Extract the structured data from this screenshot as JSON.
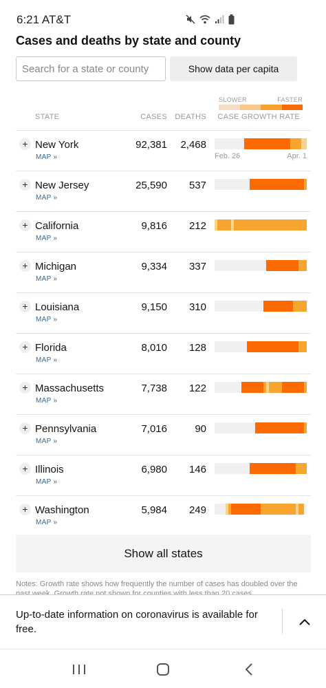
{
  "status_bar": {
    "time": "6:21",
    "carrier": "AT&T",
    "icons": [
      "mute-icon",
      "wifi-icon",
      "signal-icon",
      "battery-icon"
    ]
  },
  "headline": "Cases and deaths by state and county",
  "search": {
    "placeholder": "Search for a state or county",
    "value": ""
  },
  "per_capita_button": "Show data per capita",
  "legend": {
    "slower": "SLOWER",
    "faster": "FASTER",
    "colors": [
      "#f5dcc4",
      "#f7c78c",
      "#f8a12d",
      "#f66a07"
    ]
  },
  "table": {
    "headers": {
      "state": "STATE",
      "cases": "CASES",
      "deaths": "DEATHS",
      "rate": "CASE GROWTH RATE"
    },
    "axis": {
      "start": "Feb. 26",
      "end": "Apr. 1"
    },
    "map_label": "MAP »",
    "growth_scale": [
      "#f0f0f0",
      "#f9d38c",
      "#f8a530",
      "#ff6a00"
    ],
    "rows": [
      {
        "state": "New York",
        "cases": "92,381",
        "deaths": "2,468",
        "growth": [
          0,
          0,
          0,
          0,
          0,
          0,
          0,
          0,
          0,
          0,
          0,
          3,
          3,
          3,
          3,
          3,
          3,
          3,
          3,
          3,
          3,
          3,
          3,
          3,
          3,
          3,
          3,
          3,
          2,
          2,
          2,
          2,
          1,
          1
        ]
      },
      {
        "state": "New Jersey",
        "cases": "25,590",
        "deaths": "537",
        "growth": [
          0,
          0,
          0,
          0,
          0,
          0,
          0,
          0,
          0,
          0,
          0,
          0,
          0,
          3,
          3,
          3,
          3,
          3,
          3,
          3,
          3,
          3,
          3,
          3,
          3,
          3,
          3,
          3,
          3,
          3,
          3,
          3,
          3,
          2
        ]
      },
      {
        "state": "California",
        "cases": "9,816",
        "deaths": "212",
        "growth": [
          1,
          2,
          2,
          2,
          2,
          2,
          1,
          2,
          2,
          2,
          2,
          2,
          2,
          2,
          2,
          2,
          2,
          2,
          2,
          2,
          2,
          2,
          2,
          2,
          2,
          2,
          2,
          2,
          2,
          2,
          2,
          2,
          2,
          2
        ]
      },
      {
        "state": "Michigan",
        "cases": "9,334",
        "deaths": "337",
        "growth": [
          0,
          0,
          0,
          0,
          0,
          0,
          0,
          0,
          0,
          0,
          0,
          0,
          0,
          0,
          0,
          0,
          0,
          0,
          0,
          3,
          3,
          3,
          3,
          3,
          3,
          3,
          3,
          3,
          3,
          3,
          3,
          2,
          2,
          2
        ]
      },
      {
        "state": "Louisiana",
        "cases": "9,150",
        "deaths": "310",
        "growth": [
          0,
          0,
          0,
          0,
          0,
          0,
          0,
          0,
          0,
          0,
          0,
          0,
          0,
          0,
          0,
          0,
          0,
          0,
          3,
          3,
          3,
          3,
          3,
          3,
          3,
          3,
          3,
          3,
          3,
          2,
          2,
          2,
          2,
          2
        ]
      },
      {
        "state": "Florida",
        "cases": "8,010",
        "deaths": "128",
        "growth": [
          0,
          0,
          0,
          0,
          0,
          0,
          0,
          0,
          0,
          0,
          0,
          0,
          3,
          3,
          3,
          3,
          3,
          3,
          3,
          3,
          3,
          3,
          3,
          3,
          3,
          3,
          3,
          3,
          3,
          3,
          3,
          2,
          2,
          2
        ]
      },
      {
        "state": "Massachusetts",
        "cases": "7,738",
        "deaths": "122",
        "growth": [
          0,
          0,
          0,
          0,
          0,
          0,
          0,
          0,
          0,
          0,
          3,
          3,
          3,
          3,
          3,
          3,
          3,
          3,
          2,
          1,
          2,
          2,
          2,
          2,
          2,
          3,
          3,
          3,
          3,
          3,
          3,
          3,
          3,
          2
        ]
      },
      {
        "state": "Pennsylvania",
        "cases": "7,016",
        "deaths": "90",
        "growth": [
          0,
          0,
          0,
          0,
          0,
          0,
          0,
          0,
          0,
          0,
          0,
          0,
          0,
          0,
          0,
          3,
          3,
          3,
          3,
          3,
          3,
          3,
          3,
          3,
          3,
          3,
          3,
          3,
          3,
          3,
          3,
          3,
          3,
          2
        ]
      },
      {
        "state": "Illinois",
        "cases": "6,980",
        "deaths": "146",
        "growth": [
          0,
          0,
          0,
          0,
          0,
          0,
          0,
          0,
          0,
          0,
          0,
          0,
          0,
          3,
          3,
          3,
          3,
          3,
          3,
          3,
          3,
          3,
          3,
          3,
          3,
          3,
          3,
          3,
          3,
          3,
          2,
          2,
          2,
          2
        ]
      },
      {
        "state": "Washington",
        "cases": "5,984",
        "deaths": "249",
        "growth": [
          0,
          0,
          0,
          0,
          1,
          2,
          3,
          3,
          3,
          3,
          3,
          3,
          3,
          3,
          3,
          3,
          3,
          2,
          2,
          2,
          2,
          2,
          2,
          2,
          2,
          2,
          2,
          2,
          2,
          2,
          1,
          2,
          2,
          0
        ]
      }
    ]
  },
  "show_all_button": "Show all states",
  "notes": "Notes: Growth rate shows how frequently the number of cases has doubled over the past week. Growth rate not shown for counties with less than 20 cases.",
  "banner": {
    "text": "Up-to-date information on coronavirus is available for free.",
    "toggle_icon": "chevron-up-icon"
  },
  "nav_bar": {
    "icons": [
      "recent-apps-icon",
      "home-icon",
      "back-icon"
    ]
  }
}
